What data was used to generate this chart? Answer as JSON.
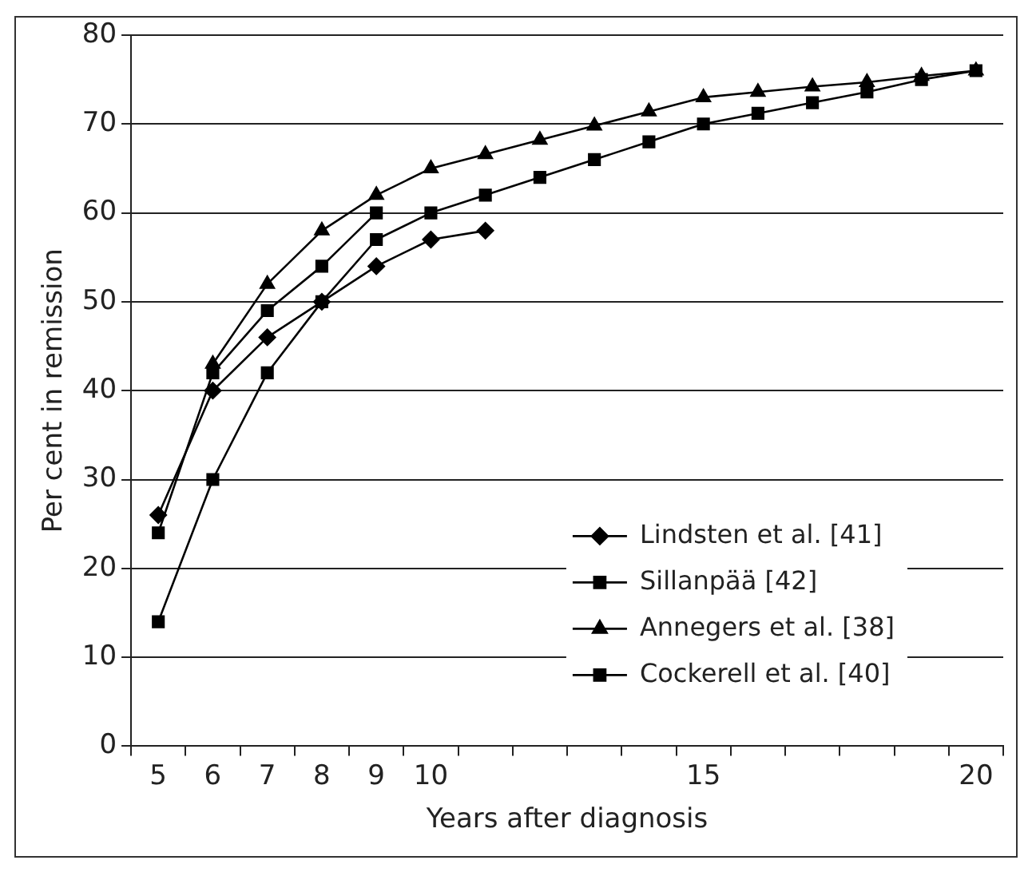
{
  "chart_data": {
    "type": "line",
    "xlabel": "Years after diagnosis",
    "ylabel": "Per cent in remission",
    "categories": [
      "5",
      "6",
      "7",
      "8",
      "9",
      "10",
      null,
      null,
      null,
      null,
      "15",
      null,
      null,
      null,
      null,
      "20"
    ],
    "ylim": [
      0,
      80
    ],
    "yticks": [
      0,
      10,
      20,
      30,
      40,
      50,
      60,
      70,
      80
    ],
    "grid": "y",
    "legend": "bottom right",
    "series": [
      {
        "name": "Lindsten et al. [41]",
        "color": "#000000",
        "marker": "diamond",
        "values": [
          26,
          40,
          46,
          50,
          54,
          57,
          58,
          null,
          null,
          null,
          null,
          null,
          null,
          null,
          null,
          null
        ]
      },
      {
        "name": "Sillanpää [42]",
        "color": "#000000",
        "marker": "square",
        "values": [
          14,
          30,
          42,
          50,
          57,
          60,
          62,
          64,
          66,
          68,
          70,
          71.2,
          72.4,
          73.6,
          75,
          76
        ]
      },
      {
        "name": "Annegers et al. [38]",
        "color": "#000000",
        "marker": "triangle",
        "values": [
          null,
          43,
          52,
          58,
          62,
          65,
          66.6,
          68.2,
          69.8,
          71.4,
          73,
          73.6,
          74.2,
          74.7,
          75.4,
          76
        ]
      },
      {
        "name": "Cockerell et al. [40]",
        "color": "#000000",
        "marker": "square",
        "values": [
          24,
          42,
          49,
          54,
          60,
          null,
          null,
          null,
          null,
          null,
          null,
          null,
          null,
          null,
          null,
          null
        ]
      }
    ]
  }
}
